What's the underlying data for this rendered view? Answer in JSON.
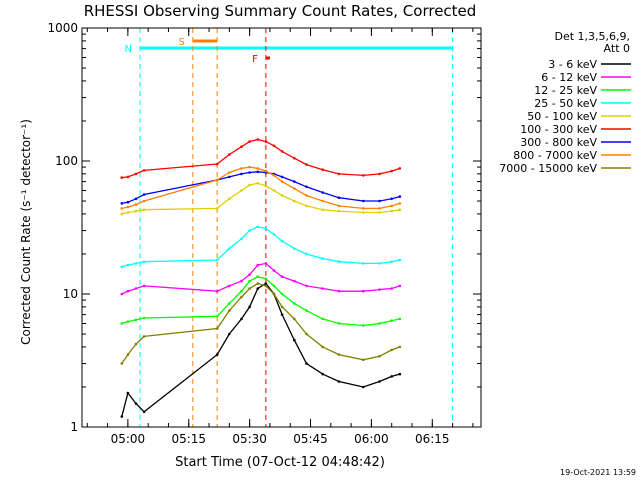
{
  "chart_data": {
    "type": "line",
    "title": "RHESSI Observing Summary Count Rates, Corrected",
    "xlabel": "Start Time (07-Oct-12 04:48:42)",
    "ylabel": "Corrected Count Rate (s⁻¹ detector⁻¹)",
    "xlim": [
      "04:48:42",
      "06:27:00"
    ],
    "ylim": [
      1,
      1000
    ],
    "yscale": "log",
    "grid": false,
    "legend_position": "right",
    "legend_header": [
      "Det 1,3,5,6,9,",
      "Att 0"
    ],
    "x_ticks": [
      "05:00",
      "05:15",
      "05:30",
      "05:45",
      "06:00",
      "06:15"
    ],
    "y_ticks": [
      "1",
      "10",
      "100",
      "1000"
    ],
    "timestamp": "19-Oct-2021 13:59",
    "flags": [
      {
        "label": "N",
        "color": "#00ffff",
        "start": "05:03",
        "end": "06:20"
      },
      {
        "label": "S",
        "color": "#ff8000",
        "start": "05:16",
        "end": "05:22"
      },
      {
        "label": "F",
        "color": "#ff0000",
        "start": "05:34",
        "end": "05:35"
      }
    ],
    "series": [
      {
        "name": "3 - 6 keV",
        "color": "#000000",
        "x": [
          "04:58:30",
          "05:00:00",
          "05:02:00",
          "05:04:00",
          "05:22:00",
          "05:25:00",
          "05:28:00",
          "05:30:00",
          "05:32:00",
          "05:34:00",
          "05:36:00",
          "05:38:00",
          "05:41:00",
          "05:44:00",
          "05:48:00",
          "05:52:00",
          "05:58:00",
          "06:02:00",
          "06:05:00",
          "06:07:00"
        ],
        "values": [
          1.2,
          1.8,
          1.5,
          1.3,
          3.5,
          5,
          6.5,
          8,
          11,
          12,
          10,
          7,
          4.5,
          3,
          2.5,
          2.2,
          2,
          2.2,
          2.4,
          2.5
        ]
      },
      {
        "name": "6 - 12 keV",
        "color": "#ff00ff",
        "x": [
          "04:58:30",
          "05:00:00",
          "05:02:00",
          "05:04:00",
          "05:22:00",
          "05:25:00",
          "05:28:00",
          "05:30:00",
          "05:32:00",
          "05:34:00",
          "05:36:00",
          "05:38:00",
          "05:41:00",
          "05:44:00",
          "05:48:00",
          "05:52:00",
          "05:58:00",
          "06:02:00",
          "06:05:00",
          "06:07:00"
        ],
        "values": [
          10,
          10.5,
          11,
          11.5,
          10.5,
          11.5,
          12.5,
          14,
          16.5,
          17,
          15,
          13.5,
          12.5,
          11.5,
          11,
          10.5,
          10.5,
          10.8,
          11,
          11.5
        ]
      },
      {
        "name": "12 - 25 keV",
        "color": "#00ff00",
        "x": [
          "04:58:30",
          "05:00:00",
          "05:02:00",
          "05:04:00",
          "05:22:00",
          "05:25:00",
          "05:28:00",
          "05:30:00",
          "05:32:00",
          "05:34:00",
          "05:36:00",
          "05:38:00",
          "05:41:00",
          "05:44:00",
          "05:48:00",
          "05:52:00",
          "05:58:00",
          "06:02:00",
          "06:05:00",
          "06:07:00"
        ],
        "values": [
          6,
          6.2,
          6.4,
          6.6,
          6.8,
          8.5,
          10.5,
          12.5,
          13.5,
          13,
          11.5,
          10,
          8.5,
          7.5,
          6.5,
          6,
          5.8,
          6,
          6.3,
          6.5
        ]
      },
      {
        "name": "25 - 50 keV",
        "color": "#00ffff",
        "x": [
          "04:58:30",
          "05:00:00",
          "05:02:00",
          "05:04:00",
          "05:22:00",
          "05:25:00",
          "05:28:00",
          "05:30:00",
          "05:32:00",
          "05:34:00",
          "05:36:00",
          "05:38:00",
          "05:41:00",
          "05:44:00",
          "05:48:00",
          "05:52:00",
          "05:58:00",
          "06:02:00",
          "06:05:00",
          "06:07:00"
        ],
        "values": [
          16,
          16.5,
          17,
          17.5,
          18,
          22,
          26,
          30,
          32,
          31,
          28,
          25,
          22,
          20,
          18.5,
          17.5,
          17,
          17,
          17.5,
          18
        ]
      },
      {
        "name": "50 - 100 keV",
        "color": "#e0d000",
        "x": [
          "04:58:30",
          "05:00:00",
          "05:02:00",
          "05:04:00",
          "05:22:00",
          "05:25:00",
          "05:28:00",
          "05:30:00",
          "05:32:00",
          "05:34:00",
          "05:36:00",
          "05:38:00",
          "05:41:00",
          "05:44:00",
          "05:48:00",
          "05:52:00",
          "05:58:00",
          "06:02:00",
          "06:05:00",
          "06:07:00"
        ],
        "values": [
          40,
          41,
          42,
          43,
          44,
          52,
          60,
          66,
          68,
          65,
          60,
          55,
          50,
          46,
          43,
          42,
          41,
          41,
          42,
          43
        ]
      },
      {
        "name": "100 - 300 keV",
        "color": "#ff0000",
        "x": [
          "04:58:30",
          "05:00:00",
          "05:02:00",
          "05:04:00",
          "05:22:00",
          "05:25:00",
          "05:28:00",
          "05:30:00",
          "05:32:00",
          "05:34:00",
          "05:36:00",
          "05:38:00",
          "05:41:00",
          "05:44:00",
          "05:48:00",
          "05:52:00",
          "05:58:00",
          "06:02:00",
          "06:05:00",
          "06:07:00"
        ],
        "values": [
          75,
          76,
          80,
          85,
          95,
          112,
          128,
          140,
          145,
          140,
          130,
          118,
          105,
          94,
          86,
          80,
          78,
          80,
          84,
          88
        ]
      },
      {
        "name": "300 - 800 keV",
        "color": "#0000ff",
        "x": [
          "04:58:30",
          "05:00:00",
          "05:02:00",
          "05:04:00",
          "05:22:00",
          "05:25:00",
          "05:28:00",
          "05:30:00",
          "05:32:00",
          "05:34:00",
          "05:36:00",
          "05:38:00",
          "05:41:00",
          "05:44:00",
          "05:48:00",
          "05:52:00",
          "05:58:00",
          "06:02:00",
          "06:05:00",
          "06:07:00"
        ],
        "values": [
          48,
          49,
          52,
          56,
          72,
          76,
          80,
          82,
          83,
          82,
          80,
          76,
          70,
          64,
          58,
          53,
          50,
          50,
          52,
          54
        ]
      },
      {
        "name": "800 - 7000 keV",
        "color": "#ff8000",
        "x": [
          "04:58:30",
          "05:00:00",
          "05:02:00",
          "05:04:00",
          "05:22:00",
          "05:25:00",
          "05:28:00",
          "05:30:00",
          "05:32:00",
          "05:34:00",
          "05:36:00",
          "05:38:00",
          "05:41:00",
          "05:44:00",
          "05:48:00",
          "05:52:00",
          "05:58:00",
          "06:02:00",
          "06:05:00",
          "06:07:00"
        ],
        "values": [
          44,
          45,
          47,
          50,
          72,
          82,
          88,
          90,
          88,
          84,
          78,
          70,
          62,
          55,
          50,
          46,
          44,
          44,
          46,
          48
        ]
      },
      {
        "name": "7000 - 15000 keV",
        "color": "#808000",
        "x": [
          "04:58:30",
          "05:00:00",
          "05:02:00",
          "05:04:00",
          "05:22:00",
          "05:25:00",
          "05:28:00",
          "05:30:00",
          "05:32:00",
          "05:34:00",
          "05:36:00",
          "05:38:00",
          "05:41:00",
          "05:44:00",
          "05:48:00",
          "05:52:00",
          "05:58:00",
          "06:02:00",
          "06:05:00",
          "06:07:00"
        ],
        "values": [
          3,
          3.5,
          4.2,
          4.8,
          5.5,
          7.5,
          9.5,
          11,
          12,
          11.5,
          10,
          8,
          6.5,
          5,
          4,
          3.5,
          3.2,
          3.4,
          3.8,
          4
        ]
      }
    ]
  }
}
